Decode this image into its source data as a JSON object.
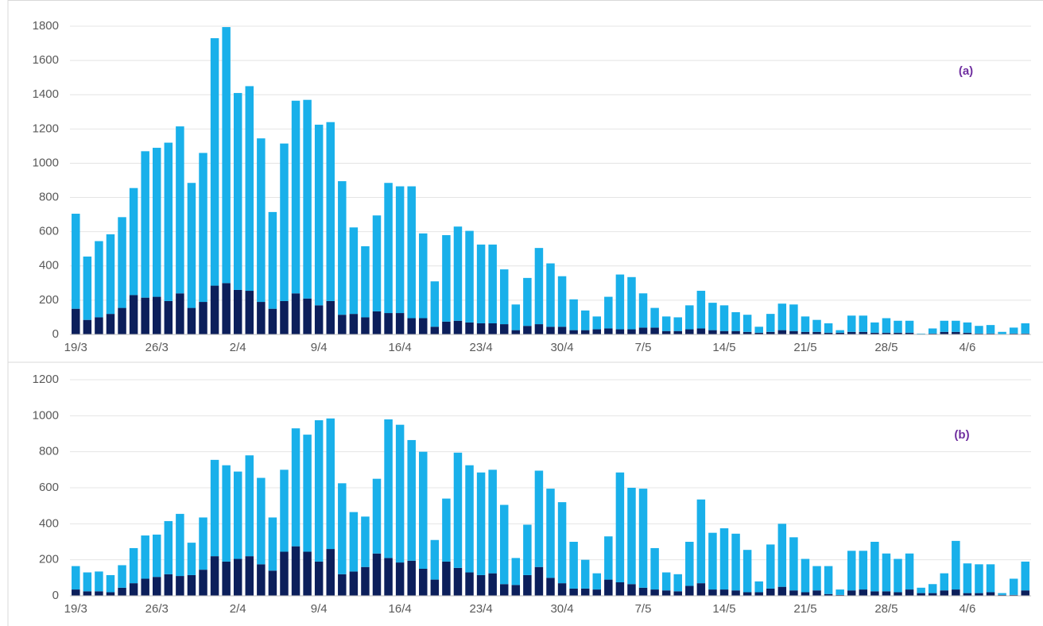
{
  "chart_data": [
    {
      "type": "bar",
      "stacked": true,
      "annotation": "(a)",
      "annotation_color": "#7030a0",
      "grid": true,
      "categories": [
        "19/3",
        null,
        null,
        null,
        null,
        null,
        null,
        "26/3",
        null,
        null,
        null,
        null,
        null,
        null,
        "2/4",
        null,
        null,
        null,
        null,
        null,
        null,
        "9/4",
        null,
        null,
        null,
        null,
        null,
        null,
        "16/4",
        null,
        null,
        null,
        null,
        null,
        null,
        "23/4",
        null,
        null,
        null,
        null,
        null,
        null,
        "30/4",
        null,
        null,
        null,
        null,
        null,
        null,
        "7/5",
        null,
        null,
        null,
        null,
        null,
        null,
        "14/5",
        null,
        null,
        null,
        null,
        null,
        null,
        "21/5",
        null,
        null,
        null,
        null,
        null,
        null,
        "28/5",
        null,
        null,
        null,
        null,
        null,
        null,
        "4/6",
        null,
        null,
        null,
        null,
        null
      ],
      "series": [
        {
          "color": "#0c1f5b",
          "values": [
            150,
            85,
            100,
            120,
            155,
            230,
            215,
            220,
            195,
            240,
            155,
            190,
            285,
            300,
            260,
            255,
            190,
            150,
            195,
            240,
            210,
            170,
            195,
            115,
            120,
            100,
            135,
            125,
            125,
            95,
            95,
            45,
            75,
            80,
            70,
            65,
            65,
            60,
            25,
            50,
            60,
            45,
            45,
            25,
            25,
            30,
            35,
            30,
            30,
            40,
            40,
            20,
            20,
            30,
            35,
            25,
            20,
            20,
            15,
            10,
            15,
            25,
            20,
            15,
            15,
            10,
            10,
            15,
            15,
            10,
            10,
            10,
            10,
            2,
            5,
            15,
            15,
            10,
            5,
            5,
            2,
            5,
            5
          ]
        },
        {
          "color": "#19b0ea",
          "values": [
            555,
            370,
            445,
            465,
            530,
            625,
            855,
            870,
            925,
            975,
            730,
            870,
            1445,
            1495,
            1150,
            1195,
            955,
            565,
            920,
            1125,
            1160,
            1055,
            1045,
            780,
            505,
            415,
            560,
            760,
            740,
            770,
            495,
            265,
            505,
            550,
            535,
            460,
            460,
            320,
            150,
            280,
            445,
            370,
            295,
            180,
            115,
            75,
            185,
            320,
            305,
            200,
            115,
            85,
            80,
            140,
            220,
            160,
            150,
            110,
            100,
            35,
            105,
            155,
            155,
            90,
            70,
            55,
            15,
            95,
            95,
            60,
            85,
            70,
            70,
            3,
            30,
            65,
            65,
            60,
            45,
            50,
            13,
            35,
            60
          ]
        }
      ],
      "ylim": [
        0,
        1800
      ],
      "yticks": [
        0,
        200,
        400,
        600,
        800,
        1000,
        1200,
        1400,
        1600,
        1800
      ]
    },
    {
      "type": "bar",
      "stacked": true,
      "annotation": "(b)",
      "annotation_color": "#7030a0",
      "grid": true,
      "categories": [
        "19/3",
        null,
        null,
        null,
        null,
        null,
        null,
        "26/3",
        null,
        null,
        null,
        null,
        null,
        null,
        "2/4",
        null,
        null,
        null,
        null,
        null,
        null,
        "9/4",
        null,
        null,
        null,
        null,
        null,
        null,
        "16/4",
        null,
        null,
        null,
        null,
        null,
        null,
        "23/4",
        null,
        null,
        null,
        null,
        null,
        null,
        "30/4",
        null,
        null,
        null,
        null,
        null,
        null,
        "7/5",
        null,
        null,
        null,
        null,
        null,
        null,
        "14/5",
        null,
        null,
        null,
        null,
        null,
        null,
        "21/5",
        null,
        null,
        null,
        null,
        null,
        null,
        "28/5",
        null,
        null,
        null,
        null,
        null,
        null,
        "4/6",
        null,
        null,
        null,
        null,
        null
      ],
      "series": [
        {
          "color": "#0c1f5b",
          "values": [
            35,
            25,
            25,
            20,
            45,
            70,
            95,
            105,
            120,
            110,
            115,
            145,
            220,
            190,
            205,
            220,
            175,
            140,
            245,
            275,
            245,
            190,
            260,
            120,
            135,
            160,
            235,
            210,
            185,
            195,
            150,
            90,
            190,
            155,
            130,
            115,
            125,
            65,
            60,
            115,
            160,
            100,
            70,
            40,
            40,
            35,
            90,
            75,
            65,
            45,
            35,
            30,
            25,
            55,
            70,
            35,
            35,
            30,
            20,
            20,
            40,
            50,
            30,
            20,
            30,
            10,
            5,
            30,
            35,
            25,
            25,
            20,
            35,
            15,
            15,
            30,
            35,
            15,
            15,
            20,
            5,
            5,
            30
          ]
        },
        {
          "color": "#19b0ea",
          "values": [
            130,
            105,
            110,
            95,
            125,
            195,
            240,
            235,
            295,
            345,
            180,
            290,
            535,
            535,
            485,
            560,
            480,
            295,
            455,
            655,
            650,
            785,
            725,
            505,
            330,
            280,
            415,
            770,
            765,
            670,
            650,
            220,
            350,
            640,
            595,
            570,
            575,
            440,
            150,
            280,
            535,
            495,
            450,
            260,
            160,
            90,
            240,
            610,
            535,
            550,
            230,
            100,
            95,
            245,
            465,
            315,
            340,
            315,
            235,
            60,
            245,
            350,
            295,
            185,
            135,
            155,
            30,
            220,
            215,
            275,
            210,
            185,
            200,
            30,
            50,
            95,
            270,
            165,
            160,
            155,
            10,
            90,
            160
          ]
        }
      ],
      "ylim": [
        0,
        1200
      ],
      "yticks": [
        0,
        200,
        400,
        600,
        800,
        1000,
        1200
      ]
    }
  ]
}
